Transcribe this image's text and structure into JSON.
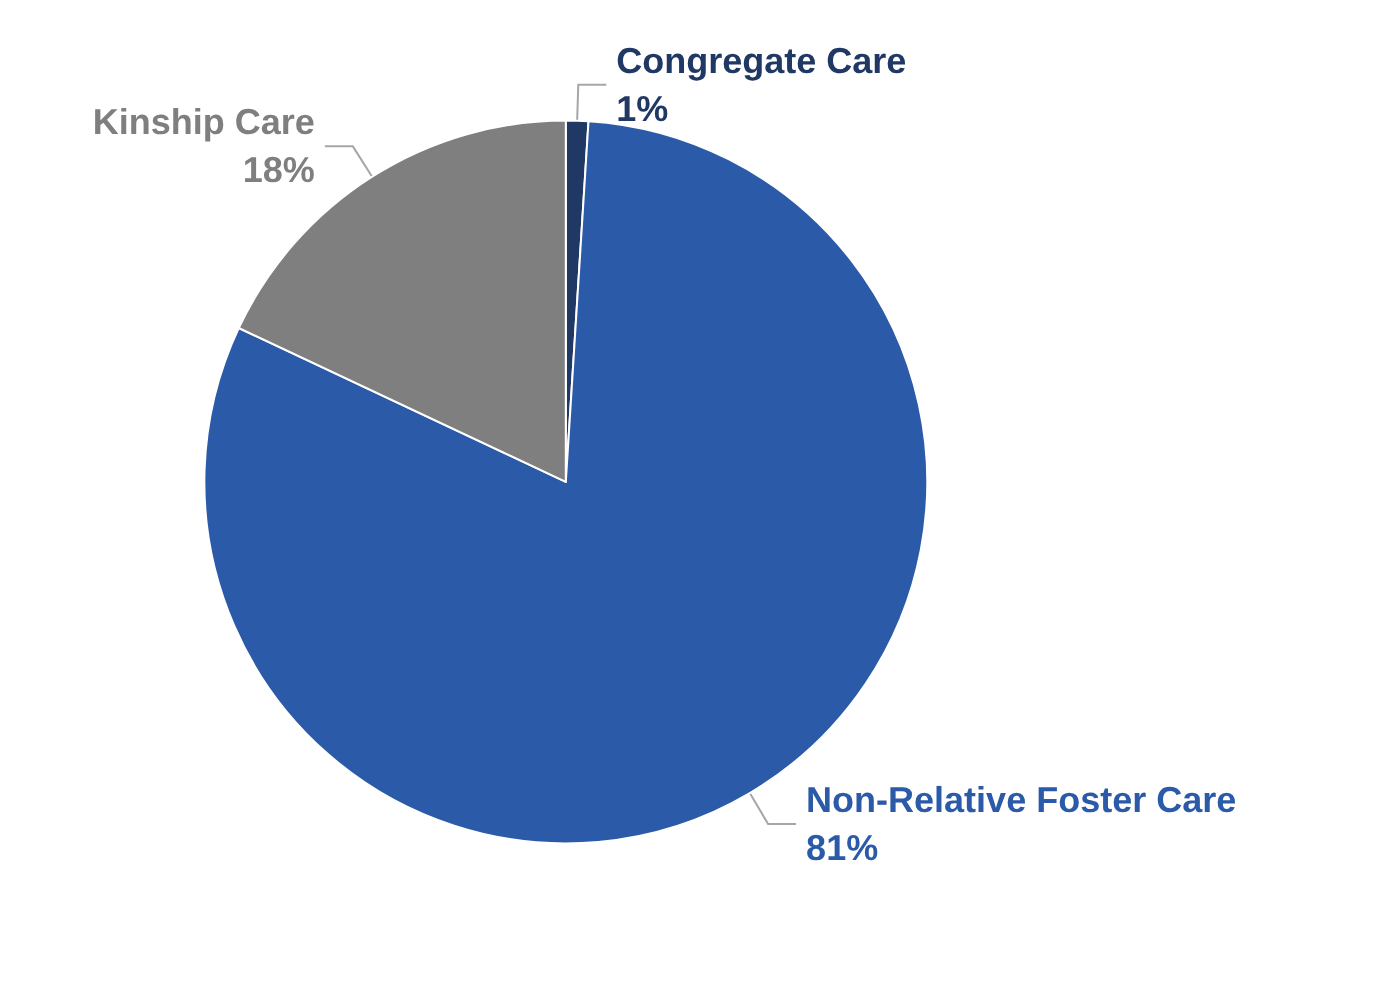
{
  "chart_data": {
    "type": "pie",
    "categories": [
      "Congregate Care",
      "Non-Relative Foster Care",
      "Kinship Care"
    ],
    "values": [
      1,
      81,
      18
    ],
    "colors": [
      "#203864",
      "#2b5ba8",
      "#7f7f7f"
    ],
    "value_labels": [
      "1%",
      "81%",
      "18%"
    ],
    "legend": false
  }
}
